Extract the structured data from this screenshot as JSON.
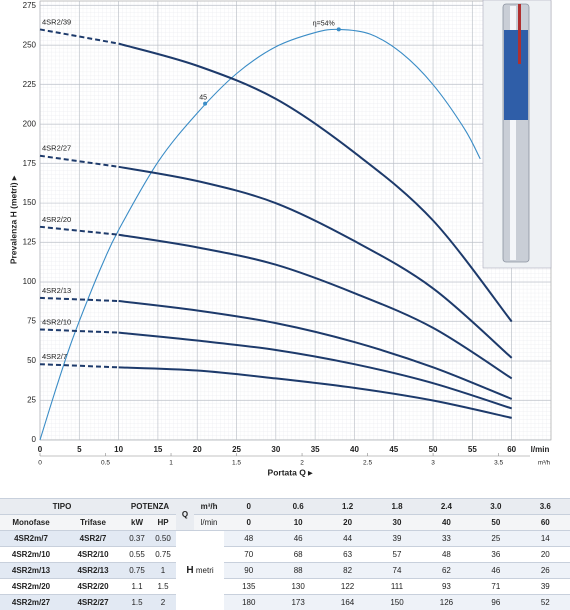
{
  "chart_data": {
    "type": "line",
    "y_label": "Prevalenza H (metri) ▸",
    "x_label": "Portata Q ▸",
    "x_unit": "l/min",
    "x2_unit": "m³/h",
    "xlim": [
      0,
      65
    ],
    "xticks": [
      0,
      5,
      10,
      15,
      20,
      25,
      30,
      35,
      40,
      45,
      50,
      55,
      60
    ],
    "x2lim": [
      0,
      3.9
    ],
    "x2ticks": [
      0,
      0.5,
      1,
      1.5,
      2,
      2.5,
      3,
      3.5
    ],
    "ylim": [
      0,
      278
    ],
    "yticks": [
      0,
      25,
      50,
      75,
      100,
      125,
      150,
      175,
      200,
      225,
      250,
      275
    ],
    "grid": true,
    "x": [
      0,
      10,
      20,
      30,
      40,
      50,
      60
    ],
    "series": [
      {
        "name": "4SR2/39",
        "color": "#1d3a6b",
        "values": [
          260,
          251,
          237,
          216,
          182,
          139,
          75
        ]
      },
      {
        "name": "4SR2/27",
        "color": "#1d3a6b",
        "values": [
          180,
          173,
          164,
          150,
          126,
          96,
          52
        ]
      },
      {
        "name": "4SR2/20",
        "color": "#1d3a6b",
        "values": [
          135,
          130,
          122,
          111,
          93,
          71,
          39
        ]
      },
      {
        "name": "4SR2/13",
        "color": "#1d3a6b",
        "values": [
          90,
          88,
          82,
          74,
          62,
          46,
          26
        ]
      },
      {
        "name": "4SR2/10",
        "color": "#1d3a6b",
        "values": [
          70,
          68,
          63,
          57,
          48,
          36,
          20
        ]
      },
      {
        "name": "4SR2/7",
        "color": "#1d3a6b",
        "values": [
          48,
          46,
          44,
          39,
          33,
          25,
          14
        ]
      }
    ],
    "efficiency": {
      "color": "#3a8cc6",
      "x": [
        0,
        2,
        4,
        6,
        8,
        10,
        15,
        20,
        25,
        30,
        35,
        38,
        42,
        46,
        50,
        54,
        56
      ],
      "values": [
        0,
        32,
        62,
        88,
        112,
        133,
        176,
        207,
        232,
        249,
        258,
        260,
        257,
        245,
        225,
        197,
        178
      ],
      "annotations": [
        {
          "x": 21,
          "y": 213,
          "label": "45"
        },
        {
          "x": 38,
          "y": 260,
          "label": "η=54%"
        }
      ]
    }
  },
  "table": {
    "header": {
      "tipo": "TIPO",
      "potenza": "POTENZA",
      "q": "Q",
      "monofase": "Monofase",
      "trifase": "Trifase",
      "kw": "kW",
      "hp": "HP",
      "m3h": "m³/h",
      "lmin": "l/min",
      "h": "H",
      "metri": "metri"
    },
    "q_m3h": [
      "0",
      "0.6",
      "1.2",
      "1.8",
      "2.4",
      "3.0",
      "3.6"
    ],
    "q_lmin": [
      "0",
      "10",
      "20",
      "30",
      "40",
      "50",
      "60"
    ],
    "rows": [
      {
        "mono": "4SR2m/7",
        "tri": "4SR2/7",
        "kw": "0.37",
        "hp": "0.50",
        "h": [
          "48",
          "46",
          "44",
          "39",
          "33",
          "25",
          "14"
        ]
      },
      {
        "mono": "4SR2m/10",
        "tri": "4SR2/10",
        "kw": "0.55",
        "hp": "0.75",
        "h": [
          "70",
          "68",
          "63",
          "57",
          "48",
          "36",
          "20"
        ]
      },
      {
        "mono": "4SR2m/13",
        "tri": "4SR2/13",
        "kw": "0.75",
        "hp": "1",
        "h": [
          "90",
          "88",
          "82",
          "74",
          "62",
          "46",
          "26"
        ]
      },
      {
        "mono": "4SR2m/20",
        "tri": "4SR2/20",
        "kw": "1.1",
        "hp": "1.5",
        "h": [
          "135",
          "130",
          "122",
          "111",
          "93",
          "71",
          "39"
        ]
      },
      {
        "mono": "4SR2m/27",
        "tri": "4SR2/27",
        "kw": "1.5",
        "hp": "2",
        "h": [
          "180",
          "173",
          "164",
          "150",
          "126",
          "96",
          "52"
        ]
      }
    ]
  }
}
